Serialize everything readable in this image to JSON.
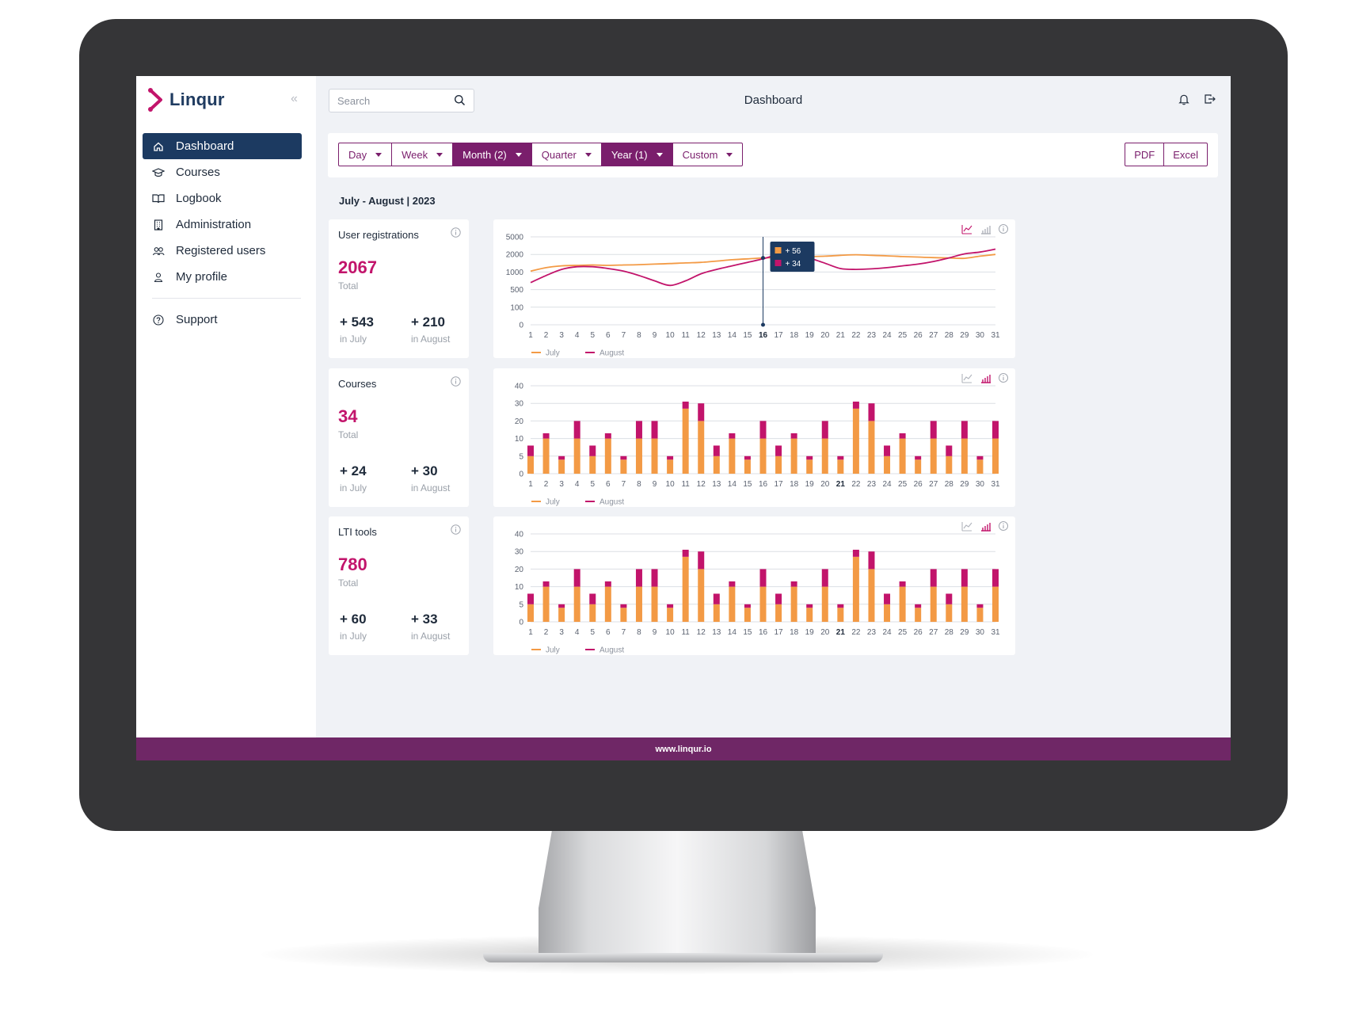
{
  "app": {
    "name": "Linqur",
    "footer_url": "www.linqur.io"
  },
  "colors": {
    "brand": "#7a1e6c",
    "accent": "#c2146b",
    "navy": "#1c3a61",
    "july": "#f39a45",
    "august": "#c2146b"
  },
  "sidebar": {
    "items": [
      {
        "label": "Dashboard",
        "icon": "home-icon",
        "active": true
      },
      {
        "label": "Courses",
        "icon": "graduation-cap-icon"
      },
      {
        "label": "Logbook",
        "icon": "book-icon"
      },
      {
        "label": "Administration",
        "icon": "building-icon"
      },
      {
        "label": "Registered users",
        "icon": "users-icon"
      },
      {
        "label": "My profile",
        "icon": "user-icon"
      }
    ],
    "support": {
      "label": "Support",
      "icon": "help-circle-icon"
    }
  },
  "header": {
    "search_placeholder": "Search",
    "title": "Dashboard"
  },
  "filters": {
    "buttons": [
      {
        "label": "Day",
        "active": false
      },
      {
        "label": "Week",
        "active": false
      },
      {
        "label": "Month (2)",
        "active": true
      },
      {
        "label": "Quarter",
        "active": false
      },
      {
        "label": "Year (1)",
        "active": true
      },
      {
        "label": "Custom",
        "active": false
      }
    ],
    "export": [
      "PDF",
      "Excel"
    ]
  },
  "period": "July - August | 2023",
  "stats": [
    {
      "title": "User registrations",
      "total": "2067",
      "total_label": "Total",
      "july": "+ 543",
      "july_label": "in July",
      "august": "+ 210",
      "august_label": "in August"
    },
    {
      "title": "Courses",
      "total": "34",
      "total_label": "Total",
      "july": "+ 24",
      "july_label": "in July",
      "august": "+ 30",
      "august_label": "in August"
    },
    {
      "title": "LTI tools",
      "total": "780",
      "total_label": "Total",
      "july": "+ 60",
      "july_label": "in July",
      "august": "+ 33",
      "august_label": "in August"
    }
  ],
  "chart_data": [
    {
      "type": "line",
      "x": [
        1,
        2,
        3,
        4,
        5,
        6,
        7,
        8,
        9,
        10,
        11,
        12,
        13,
        14,
        15,
        16,
        17,
        18,
        19,
        20,
        21,
        22,
        23,
        24,
        25,
        26,
        27,
        28,
        29,
        30,
        31
      ],
      "y_ticks": [
        "0",
        "100",
        "500",
        "1000",
        "2000",
        "5000"
      ],
      "highlight_x": 16,
      "tooltip": [
        "+ 56",
        "+ 34"
      ],
      "legend": [
        "July",
        "August"
      ],
      "series": [
        {
          "name": "July",
          "values": [
            1050,
            1250,
            1350,
            1380,
            1400,
            1380,
            1400,
            1420,
            1450,
            1480,
            1520,
            1550,
            1620,
            1700,
            1750,
            1800,
            1820,
            1850,
            1880,
            1900,
            1950,
            1980,
            1950,
            1920,
            1880,
            1850,
            1820,
            1800,
            1780,
            1900,
            2000
          ]
        },
        {
          "name": "August",
          "values": [
            700,
            900,
            1150,
            1300,
            1300,
            1200,
            1050,
            900,
            750,
            620,
            750,
            950,
            1150,
            1350,
            1550,
            1750,
            2000,
            2200,
            1800,
            1500,
            1200,
            1150,
            1180,
            1250,
            1350,
            1450,
            1600,
            1800,
            2100,
            2400,
            2900
          ]
        }
      ]
    },
    {
      "type": "bar",
      "stacked": true,
      "x": [
        1,
        2,
        3,
        4,
        5,
        6,
        7,
        8,
        9,
        10,
        11,
        12,
        13,
        14,
        15,
        16,
        17,
        18,
        19,
        20,
        21,
        22,
        23,
        24,
        25,
        26,
        27,
        28,
        29,
        30,
        31
      ],
      "highlight_x": 21,
      "y_ticks": [
        "0",
        "5",
        "10",
        "20",
        "30",
        "40"
      ],
      "legend": [
        "July",
        "August"
      ],
      "series": [
        {
          "name": "July",
          "values": [
            5,
            10,
            4,
            10,
            5,
            10,
            4,
            10,
            10,
            4,
            27,
            20,
            5,
            10,
            4,
            10,
            5,
            10,
            4,
            10,
            4,
            27,
            20,
            5,
            10,
            4,
            10,
            5,
            10,
            4,
            10
          ]
        },
        {
          "name": "August",
          "values": [
            3,
            3,
            1,
            10,
            3,
            3,
            1,
            10,
            10,
            1,
            4,
            10,
            3,
            3,
            1,
            10,
            3,
            3,
            1,
            10,
            1,
            4,
            10,
            3,
            3,
            1,
            10,
            3,
            10,
            1,
            10
          ]
        }
      ]
    },
    {
      "type": "bar",
      "stacked": true,
      "x": [
        1,
        2,
        3,
        4,
        5,
        6,
        7,
        8,
        9,
        10,
        11,
        12,
        13,
        14,
        15,
        16,
        17,
        18,
        19,
        20,
        21,
        22,
        23,
        24,
        25,
        26,
        27,
        28,
        29,
        30,
        31
      ],
      "highlight_x": 21,
      "y_ticks": [
        "0",
        "5",
        "10",
        "20",
        "30",
        "40"
      ],
      "legend": [
        "July",
        "August"
      ],
      "series": [
        {
          "name": "July",
          "values": [
            5,
            10,
            4,
            10,
            5,
            10,
            4,
            10,
            10,
            4,
            27,
            20,
            5,
            10,
            4,
            10,
            5,
            10,
            4,
            10,
            4,
            27,
            20,
            5,
            10,
            4,
            10,
            5,
            10,
            4,
            10
          ]
        },
        {
          "name": "August",
          "values": [
            3,
            3,
            1,
            10,
            3,
            3,
            1,
            10,
            10,
            1,
            4,
            10,
            3,
            3,
            1,
            10,
            3,
            3,
            1,
            10,
            1,
            4,
            10,
            3,
            3,
            1,
            10,
            3,
            10,
            1,
            10
          ]
        }
      ]
    }
  ]
}
